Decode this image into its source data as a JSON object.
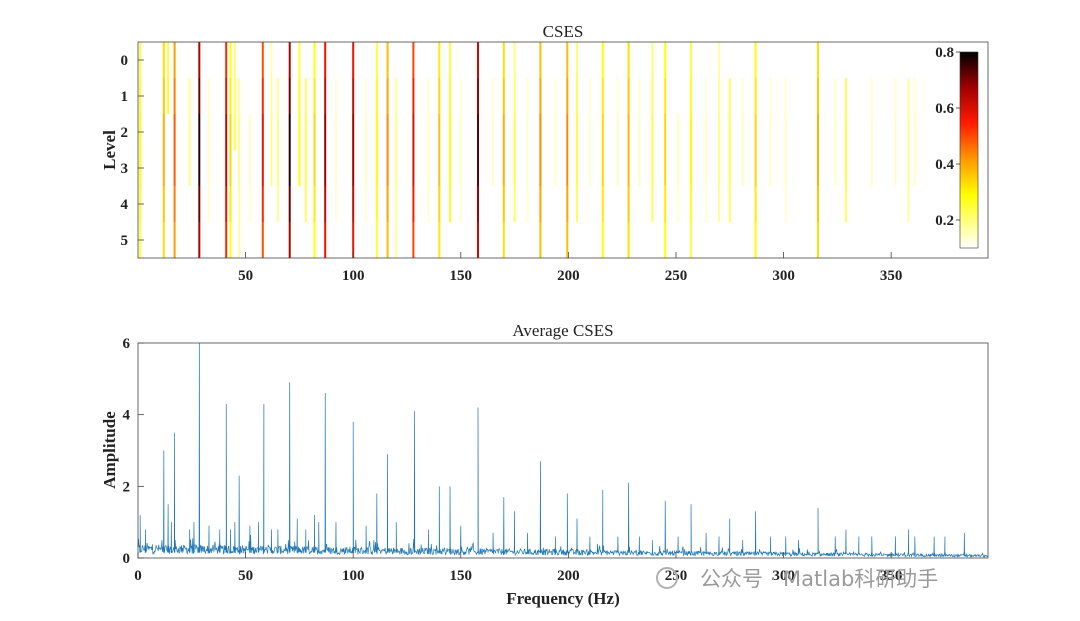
{
  "chart_data": [
    {
      "type": "heatmap",
      "title": "CSES",
      "xlabel": "",
      "ylabel": "Level",
      "xlim": [
        0,
        395
      ],
      "xticks": [
        50,
        100,
        150,
        200,
        250,
        300,
        350
      ],
      "levels": [
        0,
        1,
        2,
        3,
        4,
        5
      ],
      "colorbar": {
        "range": [
          0.1,
          0.8
        ],
        "ticks": [
          0.2,
          0.4,
          0.6,
          0.8
        ],
        "colormap": "hot (reversed)"
      },
      "cells": [
        [
          1,
          0,
          5,
          0.3
        ],
        [
          12,
          0,
          5,
          0.4
        ],
        [
          14,
          0,
          1,
          0.3
        ],
        [
          17,
          0,
          5,
          0.5
        ],
        [
          24,
          1,
          3,
          0.2
        ],
        [
          28.5,
          0,
          5,
          0.8
        ],
        [
          33,
          1,
          4,
          0.15
        ],
        [
          41,
          0,
          5,
          0.65
        ],
        [
          43,
          0,
          5,
          0.35
        ],
        [
          45,
          0,
          2,
          0.25
        ],
        [
          47,
          1,
          5,
          0.2
        ],
        [
          52,
          2,
          4,
          0.15
        ],
        [
          58,
          0,
          5,
          0.6
        ],
        [
          62,
          0,
          3,
          0.2
        ],
        [
          65,
          1,
          4,
          0.2
        ],
        [
          70.5,
          0,
          5,
          0.8
        ],
        [
          75,
          0,
          3,
          0.3
        ],
        [
          78,
          1,
          4,
          0.25
        ],
        [
          82,
          0,
          5,
          0.35
        ],
        [
          87,
          0,
          5,
          0.7
        ],
        [
          92,
          1,
          4,
          0.15
        ],
        [
          100,
          0,
          5,
          0.7
        ],
        [
          106,
          1,
          4,
          0.15
        ],
        [
          111,
          0,
          5,
          0.3
        ],
        [
          116,
          0,
          5,
          0.45
        ],
        [
          120,
          1,
          5,
          0.2
        ],
        [
          128,
          0,
          5,
          0.62
        ],
        [
          135,
          1,
          4,
          0.15
        ],
        [
          140,
          0,
          5,
          0.38
        ],
        [
          145,
          0,
          4,
          0.3
        ],
        [
          150,
          1,
          4,
          0.15
        ],
        [
          158,
          0,
          5,
          0.75
        ],
        [
          165,
          1,
          3,
          0.15
        ],
        [
          170,
          0,
          5,
          0.4
        ],
        [
          175,
          0,
          4,
          0.25
        ],
        [
          181,
          1,
          4,
          0.15
        ],
        [
          187,
          0,
          5,
          0.45
        ],
        [
          194,
          1,
          3,
          0.15
        ],
        [
          199.5,
          0,
          5,
          0.45
        ],
        [
          204,
          0,
          4,
          0.25
        ],
        [
          210,
          1,
          3,
          0.15
        ],
        [
          216,
          0,
          5,
          0.35
        ],
        [
          223,
          1,
          3,
          0.15
        ],
        [
          228,
          0,
          5,
          0.4
        ],
        [
          233,
          1,
          3,
          0.15
        ],
        [
          239,
          0,
          4,
          0.25
        ],
        [
          245,
          0,
          5,
          0.35
        ],
        [
          251,
          2,
          4,
          0.15
        ],
        [
          257,
          0,
          5,
          0.3
        ],
        [
          264,
          1,
          4,
          0.15
        ],
        [
          270,
          0,
          4,
          0.2
        ],
        [
          275,
          1,
          4,
          0.25
        ],
        [
          281,
          1,
          3,
          0.15
        ],
        [
          287,
          0,
          5,
          0.35
        ],
        [
          294,
          1,
          3,
          0.15
        ],
        [
          301,
          1,
          4,
          0.15
        ],
        [
          316,
          0,
          5,
          0.4
        ],
        [
          324,
          1,
          3,
          0.15
        ],
        [
          329,
          1,
          4,
          0.25
        ],
        [
          341,
          1,
          3,
          0.15
        ],
        [
          352,
          1,
          3,
          0.15
        ],
        [
          358,
          1,
          4,
          0.2
        ],
        [
          361,
          1,
          3,
          0.15
        ]
      ]
    },
    {
      "type": "line",
      "title": "Average CSES",
      "xlabel": "Frequency (Hz)",
      "ylabel": "Amplitude",
      "xlim": [
        0,
        395
      ],
      "ylim": [
        0,
        6
      ],
      "xticks": [
        0,
        50,
        100,
        150,
        200,
        250,
        300,
        350
      ],
      "yticks": [
        0,
        2,
        4,
        6
      ],
      "color": "#1f77b4",
      "baseline": 0.3,
      "peaks": [
        [
          1,
          1.2
        ],
        [
          3.5,
          0.8
        ],
        [
          12,
          3.0
        ],
        [
          14,
          1.5
        ],
        [
          15.5,
          1.0
        ],
        [
          17,
          3.5
        ],
        [
          24,
          0.8
        ],
        [
          26,
          1.0
        ],
        [
          28.5,
          6.0
        ],
        [
          33,
          0.9
        ],
        [
          38,
          0.8
        ],
        [
          41,
          4.3
        ],
        [
          43,
          0.8
        ],
        [
          45,
          1.0
        ],
        [
          47,
          2.3
        ],
        [
          52,
          0.9
        ],
        [
          56,
          1.0
        ],
        [
          58.5,
          4.3
        ],
        [
          62,
          0.8
        ],
        [
          65,
          0.8
        ],
        [
          70.5,
          4.9
        ],
        [
          74,
          1.1
        ],
        [
          78,
          0.8
        ],
        [
          82,
          1.2
        ],
        [
          84,
          1.0
        ],
        [
          87,
          4.6
        ],
        [
          92,
          1.0
        ],
        [
          100,
          3.8
        ],
        [
          106,
          0.9
        ],
        [
          111,
          1.8
        ],
        [
          116,
          2.9
        ],
        [
          120,
          1.0
        ],
        [
          128.5,
          4.1
        ],
        [
          135,
          0.8
        ],
        [
          140,
          2.0
        ],
        [
          145,
          2.0
        ],
        [
          150,
          0.9
        ],
        [
          158,
          4.2
        ],
        [
          165,
          0.7
        ],
        [
          170,
          1.7
        ],
        [
          175,
          1.3
        ],
        [
          181,
          0.7
        ],
        [
          187,
          2.7
        ],
        [
          194,
          0.6
        ],
        [
          199.5,
          1.8
        ],
        [
          204,
          1.1
        ],
        [
          210,
          0.6
        ],
        [
          216,
          1.9
        ],
        [
          223,
          0.6
        ],
        [
          228,
          2.1
        ],
        [
          233,
          0.6
        ],
        [
          239,
          0.5
        ],
        [
          245,
          1.6
        ],
        [
          251,
          0.6
        ],
        [
          257,
          1.5
        ],
        [
          264,
          0.7
        ],
        [
          270,
          0.6
        ],
        [
          275,
          1.1
        ],
        [
          281,
          0.5
        ],
        [
          287,
          1.3
        ],
        [
          294,
          0.6
        ],
        [
          301,
          0.6
        ],
        [
          307,
          0.5
        ],
        [
          316,
          1.4
        ],
        [
          324,
          0.6
        ],
        [
          329,
          0.8
        ],
        [
          335,
          0.6
        ],
        [
          341,
          0.6
        ],
        [
          352,
          0.6
        ],
        [
          358,
          0.8
        ],
        [
          361,
          0.6
        ],
        [
          370,
          0.6
        ],
        [
          375,
          0.6
        ],
        [
          384,
          0.7
        ]
      ]
    }
  ],
  "watermark": "公众号 · Matlab科研助手"
}
